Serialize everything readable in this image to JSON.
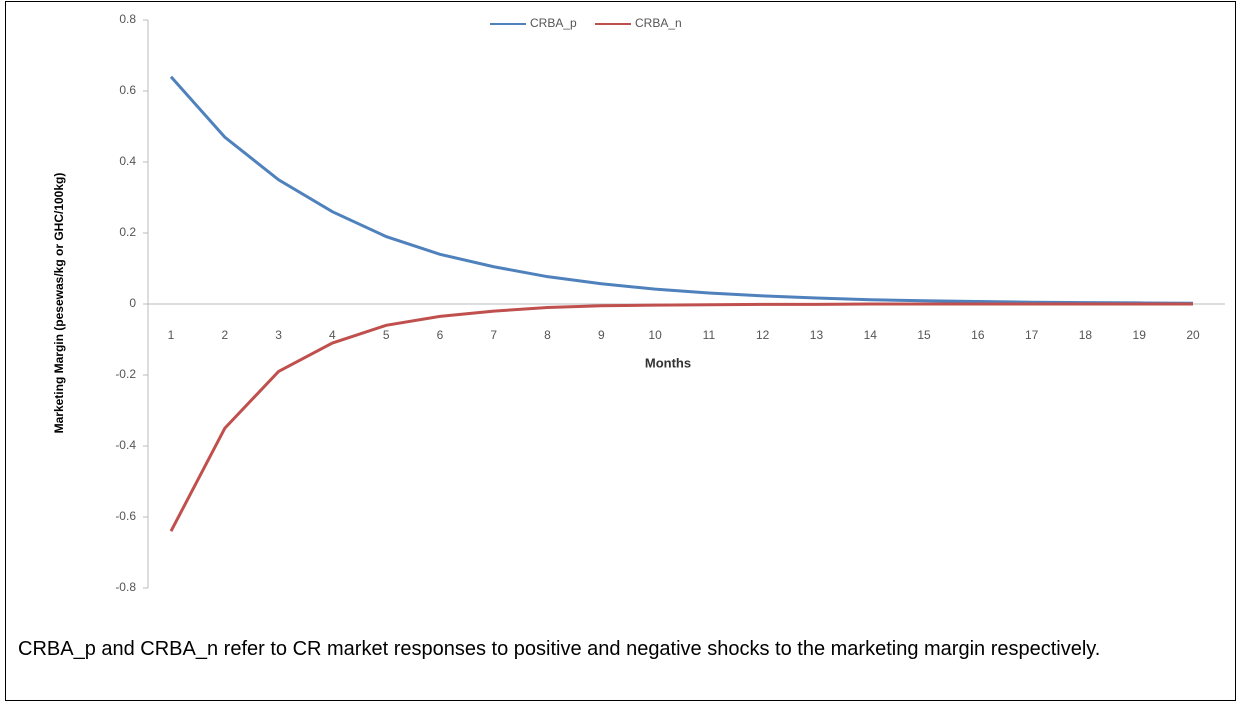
{
  "chart_data": {
    "type": "line",
    "y_label": "Marketing Margin (pesewas/kg or GHC/100kg)",
    "x_label": "Months",
    "categories": [
      1,
      2,
      3,
      4,
      5,
      6,
      7,
      8,
      9,
      10,
      11,
      12,
      13,
      14,
      15,
      16,
      17,
      18,
      19,
      20
    ],
    "series": [
      {
        "name": "CRBA_p",
        "color": "#4f81bd",
        "values": [
          0.64,
          0.47,
          0.35,
          0.26,
          0.19,
          0.14,
          0.105,
          0.077,
          0.057,
          0.042,
          0.031,
          0.023,
          0.017,
          0.012,
          0.009,
          0.007,
          0.005,
          0.004,
          0.003,
          0.002
        ]
      },
      {
        "name": "CRBA_n",
        "color": "#c0504d",
        "values": [
          -0.64,
          -0.35,
          -0.19,
          -0.11,
          -0.06,
          -0.035,
          -0.02,
          -0.01,
          -0.005,
          -0.003,
          -0.002,
          -0.001,
          -0.001,
          0,
          0,
          0,
          0,
          0,
          0,
          0
        ]
      }
    ],
    "ylim": [
      -0.8,
      0.8
    ],
    "yticks": [
      -0.8,
      -0.6,
      -0.4,
      -0.2,
      0,
      0.2,
      0.4,
      0.6,
      0.8
    ],
    "legend": "top"
  },
  "caption": "CRBA_p and CRBA_n refer to CR market responses to positive and negative shocks to the marketing margin respectively."
}
